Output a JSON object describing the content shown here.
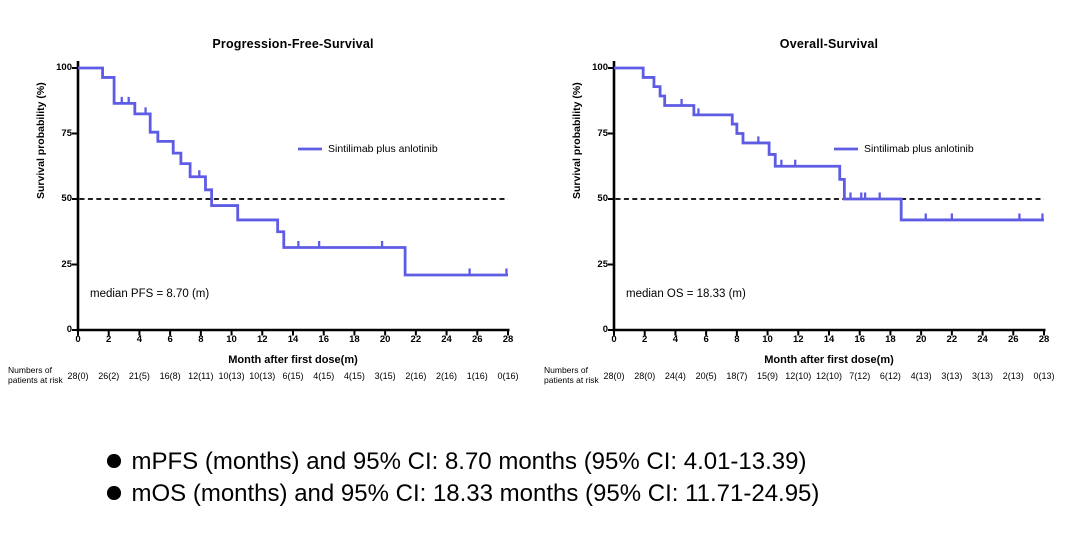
{
  "figure": {
    "background": "#ffffff",
    "text_color": "#000000",
    "curve_color": "#5e5ce4",
    "axis_color": "#000000"
  },
  "chart_data": [
    {
      "type": "line",
      "subtype": "kaplan_meier_step",
      "title": "Progression-Free-Survival",
      "xlabel": "Month after first dose(m)",
      "ylabel": "Survival probability (%)",
      "xlim": [
        0,
        28
      ],
      "ylim": [
        0,
        100
      ],
      "xticks": [
        0,
        2,
        4,
        6,
        8,
        10,
        12,
        14,
        16,
        18,
        20,
        22,
        24,
        26,
        28
      ],
      "yticks": [
        0,
        25,
        50,
        75,
        100
      ],
      "grid": false,
      "legend": "Sintilimab plus anlotinib",
      "legend_position": "middle-right",
      "reference_line_y": 50,
      "median_label": "median PFS = 8.70 (m)",
      "median_months": 8.7,
      "steps": [
        [
          0,
          100
        ],
        [
          1.6,
          96.4
        ],
        [
          2.35,
          86.5
        ],
        [
          3.7,
          82.5
        ],
        [
          4.7,
          75.5
        ],
        [
          5.2,
          72
        ],
        [
          6.2,
          67.5
        ],
        [
          6.7,
          63.5
        ],
        [
          7.3,
          58.5
        ],
        [
          8.3,
          53.5
        ],
        [
          8.7,
          47.5
        ],
        [
          10.4,
          42
        ],
        [
          13.0,
          37.5
        ],
        [
          13.4,
          31.5
        ],
        [
          21.3,
          21
        ],
        [
          28,
          21
        ]
      ],
      "censor_marks": [
        [
          2.85,
          86.5
        ],
        [
          3.3,
          86.5
        ],
        [
          4.4,
          82.5
        ],
        [
          7.9,
          58.5
        ],
        [
          14.35,
          31.5
        ],
        [
          15.7,
          31.5
        ],
        [
          19.8,
          31.5
        ],
        [
          25.5,
          21
        ],
        [
          27.9,
          21
        ]
      ],
      "at_risk_label_lines": [
        "Numbers of",
        "patients at risk"
      ],
      "at_risk": [
        "28(0)",
        "26(2)",
        "21(5)",
        "16(8)",
        "12(11)",
        "10(13)",
        "10(13)",
        "6(15)",
        "4(15)",
        "4(15)",
        "3(15)",
        "2(16)",
        "2(16)",
        "1(16)",
        "0(16)"
      ]
    },
    {
      "type": "line",
      "subtype": "kaplan_meier_step",
      "title": "Overall-Survival",
      "xlabel": "Month after first dose(m)",
      "ylabel": "Survival probability (%)",
      "xlim": [
        0,
        28
      ],
      "ylim": [
        0,
        100
      ],
      "xticks": [
        0,
        2,
        4,
        6,
        8,
        10,
        12,
        14,
        16,
        18,
        20,
        22,
        24,
        26,
        28
      ],
      "yticks": [
        0,
        25,
        50,
        75,
        100
      ],
      "grid": false,
      "legend": "Sintilimab plus anlotinib",
      "legend_position": "middle-right",
      "reference_line_y": 50,
      "median_label": "median OS = 18.33 (m)",
      "median_months": 18.33,
      "steps": [
        [
          0,
          100
        ],
        [
          1.9,
          96.4
        ],
        [
          2.6,
          92.9
        ],
        [
          3.0,
          89.3
        ],
        [
          3.3,
          85.7
        ],
        [
          5.2,
          82.1
        ],
        [
          7.7,
          78.6
        ],
        [
          8.0,
          75
        ],
        [
          8.4,
          71.4
        ],
        [
          10.1,
          67
        ],
        [
          10.5,
          62.5
        ],
        [
          14.7,
          57.5
        ],
        [
          15.0,
          50
        ],
        [
          18.7,
          42
        ],
        [
          28,
          42
        ]
      ],
      "censor_marks": [
        [
          4.4,
          85.7
        ],
        [
          5.5,
          82.1
        ],
        [
          9.4,
          71.4
        ],
        [
          10.9,
          62.5
        ],
        [
          11.8,
          62.5
        ],
        [
          15.4,
          50
        ],
        [
          16.1,
          50
        ],
        [
          16.35,
          50
        ],
        [
          17.3,
          50
        ],
        [
          20.3,
          42
        ],
        [
          22.0,
          42
        ],
        [
          26.4,
          42
        ],
        [
          27.9,
          42
        ]
      ],
      "at_risk_label_lines": [
        "Numbers of",
        "patients at risk"
      ],
      "at_risk": [
        "28(0)",
        "28(0)",
        "24(4)",
        "20(5)",
        "18(7)",
        "15(9)",
        "12(10)",
        "12(10)",
        "7(12)",
        "6(12)",
        "4(13)",
        "3(13)",
        "3(13)",
        "2(13)",
        "0(13)"
      ]
    }
  ],
  "bullets": [
    "mPFS (months) and 95% CI: 8.70 months (95% CI: 4.01-13.39)",
    "mOS (months) and 95% CI: 18.33 months (95% CI: 11.71-24.95)"
  ]
}
